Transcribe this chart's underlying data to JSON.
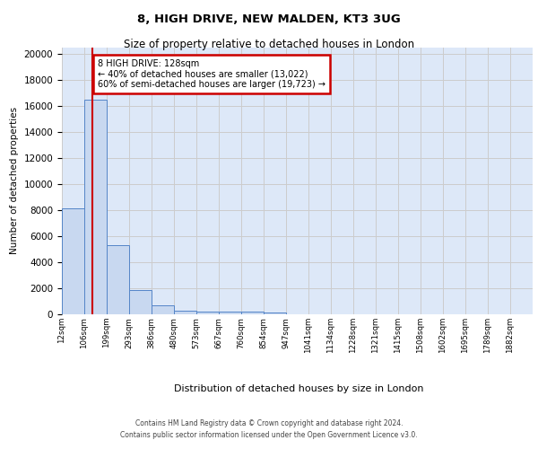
{
  "title1": "8, HIGH DRIVE, NEW MALDEN, KT3 3UG",
  "title2": "Size of property relative to detached houses in London",
  "xlabel": "Distribution of detached houses by size in London",
  "ylabel": "Number of detached properties",
  "bin_labels": [
    "12sqm",
    "106sqm",
    "199sqm",
    "293sqm",
    "386sqm",
    "480sqm",
    "573sqm",
    "667sqm",
    "760sqm",
    "854sqm",
    "947sqm",
    "1041sqm",
    "1134sqm",
    "1228sqm",
    "1321sqm",
    "1415sqm",
    "1508sqm",
    "1602sqm",
    "1695sqm",
    "1789sqm",
    "1882sqm"
  ],
  "bar_heights": [
    8100,
    16500,
    5300,
    1850,
    700,
    310,
    230,
    210,
    190,
    150,
    0,
    0,
    0,
    0,
    0,
    0,
    0,
    0,
    0,
    0,
    0
  ],
  "bar_color": "#c8d8f0",
  "bar_edge_color": "#5585c8",
  "annotation_line1": "8 HIGH DRIVE: 128sqm",
  "annotation_line2": "← 40% of detached houses are smaller (13,022)",
  "annotation_line3": "60% of semi-detached houses are larger (19,723) →",
  "annotation_box_color": "#ffffff",
  "annotation_border_color": "#cc0000",
  "vline_color": "#cc0000",
  "vline_x": 1.35,
  "ylim": [
    0,
    20500
  ],
  "yticks": [
    0,
    2000,
    4000,
    6000,
    8000,
    10000,
    12000,
    14000,
    16000,
    18000,
    20000
  ],
  "grid_color": "#cccccc",
  "bg_color": "#dde8f8",
  "footer1": "Contains HM Land Registry data © Crown copyright and database right 2024.",
  "footer2": "Contains public sector information licensed under the Open Government Licence v3.0."
}
